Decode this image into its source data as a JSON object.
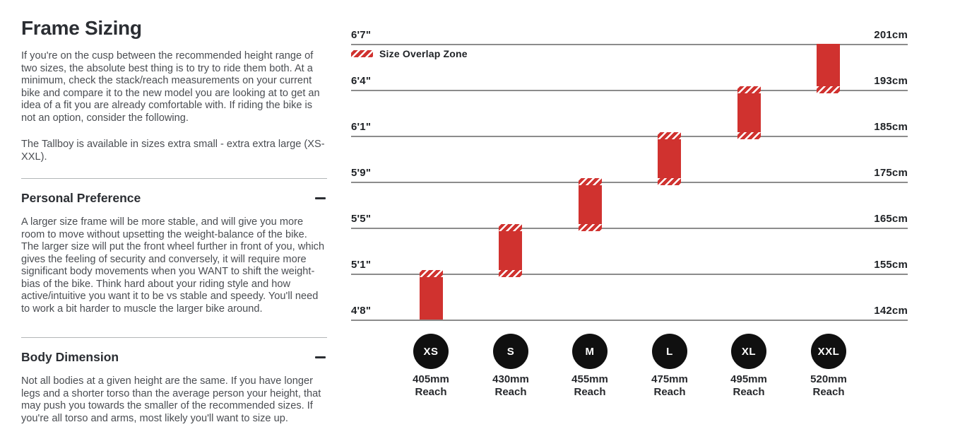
{
  "page": {
    "title": "Frame Sizing",
    "intro_paragraphs": [
      "If you're on the cusp between the recommended height range of two sizes, the absolute best thing is to try to ride them both. At a minimum, check the stack/reach measurements on your current bike and compare it to the new model you are looking at to get an idea of a fit you are already comfortable with. If riding the bike is not an option, consider the following.",
      "The Tallboy is available in sizes extra small - extra extra large (XS-XXL)."
    ],
    "sections": [
      {
        "heading": "Personal Preference",
        "toggle_state": "expanded",
        "body": "A larger size frame will be more stable, and will give you more room to move without upsetting the weight-balance of the bike. The larger size will put the front wheel further in front of you, which gives the feeling of security and conversely, it will require more significant body movements when you WANT to shift the weight-bias of the bike. Think hard about your riding style and how active/intuitive you want it to be vs stable and speedy. You'll need to work a bit harder to muscle the larger bike around."
      },
      {
        "heading": "Body Dimension",
        "toggle_state": "expanded",
        "body": "Not all bodies at a given height are the same. If you have longer legs and a shorter torso than the average person your height, that may push you towards the smaller of the recommended sizes. If you're all torso and arms, most likely you'll want to size up."
      }
    ]
  },
  "chart_data": {
    "type": "bar",
    "legend": {
      "label": "Size Overlap Zone",
      "position": "top-left",
      "swatch": "red-white-hatched"
    },
    "colors": {
      "bar": "#d0322f",
      "badge": "#101010",
      "gridline": "#8c8c8c"
    },
    "rows": [
      {
        "left": "6'7\"",
        "right": "201cm"
      },
      {
        "left": "6'4\"",
        "right": "193cm"
      },
      {
        "left": "6'1\"",
        "right": "185cm"
      },
      {
        "left": "5'9\"",
        "right": "175cm"
      },
      {
        "left": "5'5\"",
        "right": "165cm"
      },
      {
        "left": "5'1\"",
        "right": "155cm"
      },
      {
        "left": "4'8\"",
        "right": "142cm"
      }
    ],
    "sizes": [
      {
        "label": "XS",
        "reach_value": "405mm",
        "reach_word": "Reach",
        "height_range_ft": "4'8\" - 5'1\"",
        "height_range_cm": "142cm - 155cm",
        "overlap_zones": [
          "top"
        ]
      },
      {
        "label": "S",
        "reach_value": "430mm",
        "reach_word": "Reach",
        "height_range_ft": "5'1\" - 5'5\"",
        "height_range_cm": "155cm - 165cm",
        "overlap_zones": [
          "top",
          "bottom"
        ]
      },
      {
        "label": "M",
        "reach_value": "455mm",
        "reach_word": "Reach",
        "height_range_ft": "5'5\" - 5'9\"",
        "height_range_cm": "165cm - 175cm",
        "overlap_zones": [
          "top",
          "bottom"
        ]
      },
      {
        "label": "L",
        "reach_value": "475mm",
        "reach_word": "Reach",
        "height_range_ft": "5'9\" - 6'1\"",
        "height_range_cm": "175cm - 185cm",
        "overlap_zones": [
          "top",
          "bottom"
        ]
      },
      {
        "label": "XL",
        "reach_value": "495mm",
        "reach_word": "Reach",
        "height_range_ft": "6'1\" - 6'4\"",
        "height_range_cm": "185cm - 193cm",
        "overlap_zones": [
          "top",
          "bottom"
        ]
      },
      {
        "label": "XXL",
        "reach_value": "520mm",
        "reach_word": "Reach",
        "height_range_ft": "6'4\" - 6'7\"",
        "height_range_cm": "193cm - 201cm",
        "overlap_zones": [
          "bottom"
        ]
      }
    ]
  }
}
